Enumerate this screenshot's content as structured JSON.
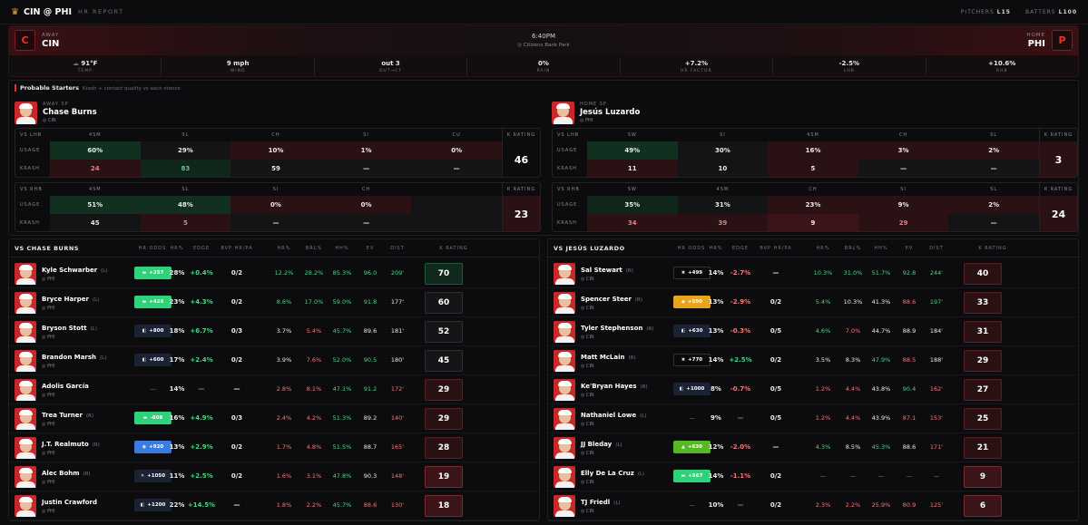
{
  "header": {
    "title": "CIN @ PHI",
    "subtitle": "HR REPORT",
    "pitchers_label": "PITCHERS",
    "pitchers_val": "L15",
    "batters_label": "BATTERS",
    "batters_val": "L100"
  },
  "game": {
    "away_label": "AWAY",
    "away": "CIN",
    "home_label": "HOME",
    "home": "PHI",
    "time": "6:40PM",
    "park": "Citizens Bank Park",
    "weather": [
      {
        "v": "91°F",
        "l": "TEMP",
        "c": "white"
      },
      {
        "v": "9 mph",
        "l": "WIND",
        "c": "white"
      },
      {
        "v": "out 3",
        "l": "OUT→CF",
        "c": "green"
      },
      {
        "v": "0%",
        "l": "RAIN",
        "c": "white"
      },
      {
        "v": "+7.2%",
        "l": "HR FACTOR",
        "c": "green"
      },
      {
        "v": "-2.5%",
        "l": "LHB",
        "c": "muted"
      },
      {
        "v": "+10.6%",
        "l": "RHB",
        "c": "green"
      }
    ]
  },
  "starters": {
    "title": "Probable Starters",
    "subtitle": "Krash + contact quality vs each stance",
    "away": {
      "role": "AWAY SP",
      "name": "Chase Burns",
      "team": "CIN",
      "lhb": {
        "label": "VS LHB",
        "pitches": [
          "4SM",
          "SL",
          "CH",
          "SI",
          "CU"
        ],
        "usage": [
          "60%",
          "29%",
          "10%",
          "1%",
          "0%"
        ],
        "krash": [
          "24",
          "83",
          "59",
          "—",
          "—"
        ],
        "usage_bg": [
          "bg-g",
          "bg-n",
          "bg-r2",
          "bg-r2",
          "bg-r2"
        ],
        "krash_bg": [
          "bg-r2",
          "bg-g2",
          "bg-n",
          "bg-n",
          "bg-n"
        ],
        "krash_c": [
          "red",
          "green",
          "white",
          "white",
          "white"
        ],
        "k": "46"
      },
      "rhb": {
        "label": "VS RHB",
        "pitches": [
          "4SM",
          "SL",
          "SI",
          "CH",
          ""
        ],
        "usage": [
          "51%",
          "48%",
          "0%",
          "0%",
          ""
        ],
        "krash": [
          "45",
          "5",
          "—",
          "—",
          ""
        ],
        "usage_bg": [
          "bg-g",
          "bg-g",
          "bg-r2",
          "bg-r2",
          "bg-n"
        ],
        "krash_bg": [
          "bg-n",
          "bg-r2",
          "bg-n",
          "bg-n",
          "bg-n"
        ],
        "krash_c": [
          "white",
          "red",
          "white",
          "white",
          "white"
        ],
        "k": "23"
      }
    },
    "home": {
      "role": "HOME SP",
      "name": "Jesús Luzardo",
      "team": "PHI",
      "lhb": {
        "label": "VS LHB",
        "pitches": [
          "SW",
          "SI",
          "4SM",
          "CH",
          "SL"
        ],
        "usage": [
          "49%",
          "30%",
          "16%",
          "3%",
          "2%"
        ],
        "krash": [
          "11",
          "10",
          "5",
          "—",
          "—"
        ],
        "usage_bg": [
          "bg-g",
          "bg-n",
          "bg-r2",
          "bg-r2",
          "bg-r2"
        ],
        "krash_bg": [
          "bg-r2",
          "bg-n",
          "bg-r2",
          "bg-n",
          "bg-n"
        ],
        "krash_c": [
          "white",
          "white",
          "white",
          "white",
          "white"
        ],
        "k": "3"
      },
      "rhb": {
        "label": "VS RHB",
        "pitches": [
          "SW",
          "4SM",
          "CH",
          "SI",
          "SL"
        ],
        "usage": [
          "35%",
          "31%",
          "23%",
          "9%",
          "2%"
        ],
        "krash": [
          "34",
          "39",
          "9",
          "29",
          "—"
        ],
        "usage_bg": [
          "bg-g2",
          "bg-n",
          "bg-r2",
          "bg-r2",
          "bg-r2"
        ],
        "krash_bg": [
          "bg-r2",
          "bg-r2",
          "bg-r",
          "bg-r2",
          "bg-n"
        ],
        "krash_c": [
          "red",
          "red",
          "white",
          "red",
          "white"
        ],
        "k": "24"
      }
    },
    "usage_label": "USAGE",
    "krash_label": "KRASH",
    "k_label": "K RATING"
  },
  "columns": [
    "HR ODDS",
    "HR%",
    "EDGE",
    "BVP HR/PA",
    "HR%",
    "BRL%",
    "HH%",
    "EV",
    "DIST",
    "K RATING"
  ],
  "left": {
    "title": "VS CHASE BURNS",
    "rows": [
      {
        "name": "Kyle Schwarber",
        "hand": "(L)",
        "team": "PHI",
        "odds": "+257",
        "ob": "#2fd27a",
        "oi": "▬",
        "hr": "28%",
        "edge": "+0.4%",
        "ec": "green",
        "bvp": "0/2",
        "hr2": "12.2%",
        "hc": "green",
        "brl": "28.2%",
        "bc": "green",
        "hh": "85.3%",
        "hhc": "green",
        "ev": "96.0",
        "evc": "green",
        "dist": "209'",
        "dc": "green",
        "k": "70",
        "kc": "kg"
      },
      {
        "name": "Bryce Harper",
        "hand": "(L)",
        "team": "PHI",
        "odds": "+426",
        "ob": "#2fd27a",
        "oi": "▬",
        "hr": "23%",
        "edge": "+4.3%",
        "ec": "green",
        "bvp": "0/2",
        "hr2": "8.6%",
        "hc": "green",
        "brl": "17.0%",
        "bc": "green",
        "hh": "59.0%",
        "hhc": "green",
        "ev": "91.8",
        "evc": "green",
        "dist": "177'",
        "dc": "white",
        "k": "60",
        "kc": "kn"
      },
      {
        "name": "Bryson Stott",
        "hand": "(L)",
        "team": "PHI",
        "odds": "+800",
        "ob": "#1b2233",
        "oi": "◧",
        "hr": "18%",
        "edge": "+6.7%",
        "ec": "green",
        "bvp": "0/3",
        "hr2": "3.7%",
        "hc": "white",
        "brl": "5.4%",
        "bc": "red",
        "hh": "45.7%",
        "hhc": "green",
        "ev": "89.6",
        "evc": "white",
        "dist": "181'",
        "dc": "white",
        "k": "52",
        "kc": "kn"
      },
      {
        "name": "Brandon Marsh",
        "hand": "(L)",
        "team": "PHI",
        "odds": "+600",
        "ob": "#1b2233",
        "oi": "◧",
        "hr": "17%",
        "edge": "+2.4%",
        "ec": "green",
        "bvp": "0/2",
        "hr2": "3.9%",
        "hc": "white",
        "brl": "7.6%",
        "bc": "red",
        "hh": "52.0%",
        "hhc": "green",
        "ev": "90.5",
        "evc": "green",
        "dist": "180'",
        "dc": "white",
        "k": "45",
        "kc": "kn"
      },
      {
        "name": "Adolis García",
        "hand": "",
        "team": "PHI",
        "odds": "—",
        "ob": "",
        "oi": "",
        "hr": "14%",
        "edge": "—",
        "ec": "muted",
        "bvp": "—",
        "hr2": "2.8%",
        "hc": "red",
        "brl": "8.1%",
        "bc": "red",
        "hh": "47.1%",
        "hhc": "green",
        "ev": "91.2",
        "evc": "green",
        "dist": "172'",
        "dc": "red",
        "k": "29",
        "kc": "kr1"
      },
      {
        "name": "Trea Turner",
        "hand": "(R)",
        "team": "PHI",
        "odds": "-809",
        "ob": "#2fd27a",
        "oi": "▬",
        "hr": "16%",
        "edge": "+4.9%",
        "ec": "green",
        "bvp": "0/3",
        "hr2": "2.4%",
        "hc": "red",
        "brl": "4.2%",
        "bc": "red",
        "hh": "51.3%",
        "hhc": "green",
        "ev": "89.2",
        "evc": "white",
        "dist": "140'",
        "dc": "red",
        "k": "29",
        "kc": "kr1"
      },
      {
        "name": "J.T. Realmuto",
        "hand": "(R)",
        "team": "PHI",
        "odds": "+920",
        "ob": "#3a7be0",
        "oi": "◉",
        "hr": "13%",
        "edge": "+2.9%",
        "ec": "green",
        "bvp": "0/2",
        "hr2": "1.7%",
        "hc": "red",
        "brl": "4.8%",
        "bc": "red",
        "hh": "51.5%",
        "hhc": "green",
        "ev": "88.7",
        "evc": "white",
        "dist": "165'",
        "dc": "red",
        "k": "28",
        "kc": "kr1"
      },
      {
        "name": "Alec Bohm",
        "hand": "(R)",
        "team": "PHI",
        "odds": "+1050",
        "ob": "#1b2233",
        "oi": "✕",
        "hr": "11%",
        "edge": "+2.5%",
        "ec": "green",
        "bvp": "0/2",
        "hr2": "1.6%",
        "hc": "red",
        "brl": "3.1%",
        "bc": "red",
        "hh": "47.8%",
        "hhc": "green",
        "ev": "90.3",
        "evc": "white",
        "dist": "148'",
        "dc": "red",
        "k": "19",
        "kc": "kr2"
      },
      {
        "name": "Justin Crawford",
        "hand": "",
        "team": "PHI",
        "odds": "+1200",
        "ob": "#1b2233",
        "oi": "◧",
        "hr": "22%",
        "edge": "+14.5%",
        "ec": "green",
        "bvp": "—",
        "hr2": "1.8%",
        "hc": "red",
        "brl": "2.2%",
        "bc": "red",
        "hh": "45.7%",
        "hhc": "green",
        "ev": "88.6",
        "evc": "red",
        "dist": "130'",
        "dc": "red",
        "k": "18",
        "kc": "kr2"
      }
    ]
  },
  "right": {
    "title": "VS JESÚS LUZARDO",
    "rows": [
      {
        "name": "Sal Stewart",
        "hand": "(R)",
        "team": "CIN",
        "odds": "+499",
        "ob": "#0a0a0a",
        "oi": "✖",
        "hr": "14%",
        "edge": "-2.7%",
        "ec": "red",
        "bvp": "—",
        "hr2": "10.3%",
        "hc": "green",
        "brl": "31.0%",
        "bc": "green",
        "hh": "51.7%",
        "hhc": "green",
        "ev": "92.8",
        "evc": "green",
        "dist": "244'",
        "dc": "green",
        "k": "40",
        "kc": "kr1"
      },
      {
        "name": "Spencer Steer",
        "hand": "(R)",
        "team": "CIN",
        "odds": "+550",
        "ob": "#e8a51c",
        "oi": "◆",
        "hr": "13%",
        "edge": "-2.9%",
        "ec": "red",
        "bvp": "0/2",
        "hr2": "5.4%",
        "hc": "green",
        "brl": "10.3%",
        "bc": "white",
        "hh": "41.3%",
        "hhc": "white",
        "ev": "88.6",
        "evc": "red",
        "dist": "197'",
        "dc": "green",
        "k": "33",
        "kc": "kr1"
      },
      {
        "name": "Tyler Stephenson",
        "hand": "(R)",
        "team": "CIN",
        "odds": "+630",
        "ob": "#1b2233",
        "oi": "◧",
        "hr": "13%",
        "edge": "-0.3%",
        "ec": "red",
        "bvp": "0/5",
        "hr2": "4.6%",
        "hc": "green",
        "brl": "7.0%",
        "bc": "red",
        "hh": "44.7%",
        "hhc": "white",
        "ev": "88.9",
        "evc": "white",
        "dist": "184'",
        "dc": "white",
        "k": "31",
        "kc": "kr1"
      },
      {
        "name": "Matt McLain",
        "hand": "(R)",
        "team": "CIN",
        "odds": "+770",
        "ob": "#0a0a0a",
        "oi": "✖",
        "hr": "14%",
        "edge": "+2.5%",
        "ec": "green",
        "bvp": "0/2",
        "hr2": "3.5%",
        "hc": "white",
        "brl": "8.3%",
        "bc": "white",
        "hh": "47.9%",
        "hhc": "green",
        "ev": "88.5",
        "evc": "red",
        "dist": "188'",
        "dc": "white",
        "k": "29",
        "kc": "kr1"
      },
      {
        "name": "Ke'Bryan Hayes",
        "hand": "(R)",
        "team": "CIN",
        "odds": "+1000",
        "ob": "#1b2233",
        "oi": "◧",
        "hr": "8%",
        "edge": "-0.7%",
        "ec": "red",
        "bvp": "0/5",
        "hr2": "1.2%",
        "hc": "red",
        "brl": "4.4%",
        "bc": "red",
        "hh": "43.8%",
        "hhc": "white",
        "ev": "90.4",
        "evc": "green",
        "dist": "162'",
        "dc": "red",
        "k": "27",
        "kc": "kr1"
      },
      {
        "name": "Nathaniel Lowe",
        "hand": "(L)",
        "team": "CIN",
        "odds": "—",
        "ob": "",
        "oi": "",
        "hr": "9%",
        "edge": "—",
        "ec": "muted",
        "bvp": "0/5",
        "hr2": "1.2%",
        "hc": "red",
        "brl": "4.4%",
        "bc": "red",
        "hh": "43.9%",
        "hhc": "white",
        "ev": "87.1",
        "evc": "red",
        "dist": "153'",
        "dc": "red",
        "k": "25",
        "kc": "kr1"
      },
      {
        "name": "JJ Bleday",
        "hand": "(L)",
        "team": "CIN",
        "odds": "+630",
        "ob": "#56b825",
        "oi": "▲",
        "hr": "12%",
        "edge": "-2.0%",
        "ec": "red",
        "bvp": "—",
        "hr2": "4.3%",
        "hc": "green",
        "brl": "8.5%",
        "bc": "white",
        "hh": "45.3%",
        "hhc": "green",
        "ev": "88.6",
        "evc": "white",
        "dist": "171'",
        "dc": "red",
        "k": "21",
        "kc": "kr1"
      },
      {
        "name": "Elly De La Cruz",
        "hand": "(L)",
        "team": "CIN",
        "odds": "+567",
        "ob": "#2fd27a",
        "oi": "▬",
        "hr": "14%",
        "edge": "-1.1%",
        "ec": "red",
        "bvp": "0/2",
        "hr2": "—",
        "hc": "muted",
        "brl": "—",
        "bc": "muted",
        "hh": "—",
        "hhc": "muted",
        "ev": "—",
        "evc": "muted",
        "dist": "—",
        "dc": "muted",
        "k": "9",
        "kc": "kr2"
      },
      {
        "name": "TJ Friedl",
        "hand": "(L)",
        "team": "CIN",
        "odds": "—",
        "ob": "",
        "oi": "",
        "hr": "10%",
        "edge": "—",
        "ec": "muted",
        "bvp": "0/2",
        "hr2": "2.3%",
        "hc": "red",
        "brl": "2.2%",
        "bc": "red",
        "hh": "25.9%",
        "hhc": "red",
        "ev": "80.9",
        "evc": "red",
        "dist": "125'",
        "dc": "red",
        "k": "6",
        "kc": "kr2"
      }
    ]
  }
}
